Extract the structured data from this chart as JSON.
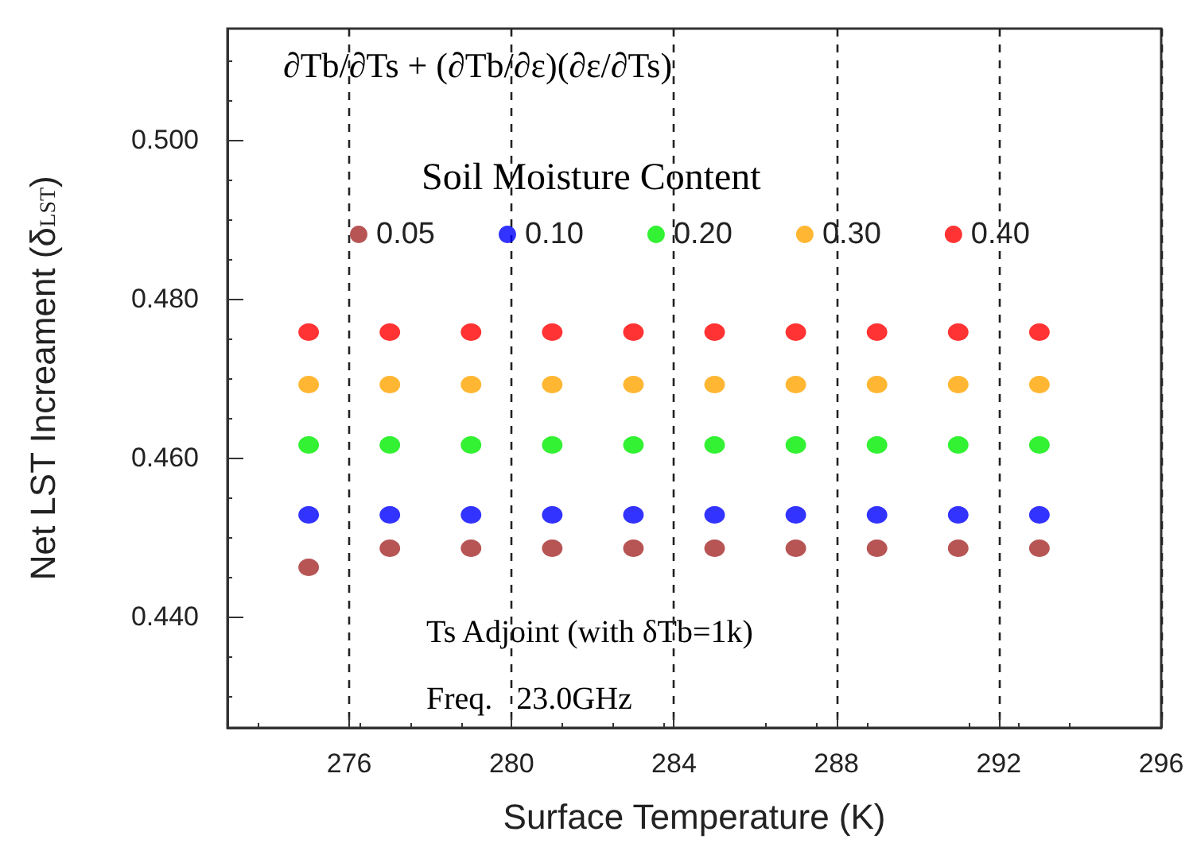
{
  "chart_data": {
    "type": "scatter",
    "xlabel": "Surface Temperature (K)",
    "ylabel": "Net LST Increament (δ$_{LST}$)",
    "legend_title": "Soil Moisture Content",
    "annotations": [
      "∂Tb/∂Ts + (∂Tb/∂ε)(∂ε/∂Ts)",
      "Ts Adjoint (with δTb=1k)",
      "Freq.   23.0GHz"
    ],
    "x": [
      275,
      277,
      279,
      281,
      283,
      285,
      287,
      289,
      291,
      293
    ],
    "series": [
      {
        "name": "0.05",
        "color": "#a52a2a",
        "values": [
          0.4462,
          0.4486,
          0.4486,
          0.4486,
          0.4486,
          0.4486,
          0.4486,
          0.4486,
          0.4486,
          0.4486
        ]
      },
      {
        "name": "0.10",
        "color": "#0000ff",
        "values": [
          0.4528,
          0.4528,
          0.4528,
          0.4528,
          0.4528,
          0.4528,
          0.4528,
          0.4528,
          0.4528,
          0.4528
        ]
      },
      {
        "name": "0.20",
        "color": "#00ee00",
        "values": [
          0.4616,
          0.4616,
          0.4616,
          0.4616,
          0.4616,
          0.4616,
          0.4616,
          0.4616,
          0.4616,
          0.4616
        ]
      },
      {
        "name": "0.30",
        "color": "#ffa500",
        "values": [
          0.4692,
          0.4692,
          0.4692,
          0.4692,
          0.4692,
          0.4692,
          0.4692,
          0.4692,
          0.4692,
          0.4692
        ]
      },
      {
        "name": "0.40",
        "color": "#ff0000",
        "values": [
          0.4758,
          0.4758,
          0.4758,
          0.4758,
          0.4758,
          0.4758,
          0.4758,
          0.4758,
          0.4758,
          0.4758
        ]
      }
    ],
    "xlim": [
      273,
      296
    ],
    "xticks": [
      276,
      280,
      284,
      288,
      292,
      296
    ],
    "ylim": [
      0.426,
      0.514
    ],
    "yticks": [
      {
        "value": 0.44,
        "label": "0.440"
      },
      {
        "value": 0.46,
        "label": "0.460"
      },
      {
        "value": 0.48,
        "label": "0.480"
      },
      {
        "value": 0.5,
        "label": "0.500"
      }
    ],
    "grid": "x",
    "legend": "top",
    "marker": "circle"
  }
}
